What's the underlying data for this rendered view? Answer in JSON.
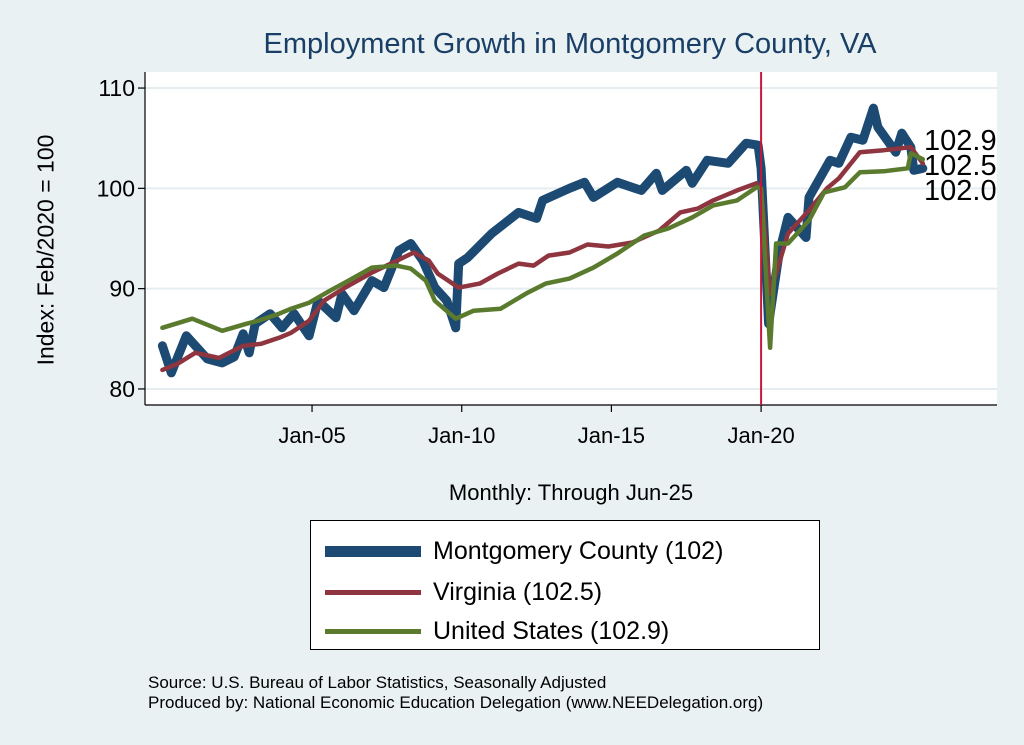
{
  "chart_data": {
    "type": "line",
    "title": "Employment Growth in Montgomery  County, VA",
    "xlabel": "Monthly: Through Jun-25",
    "ylabel": "Index: Feb/2020 = 100",
    "xlim": [
      1999.42,
      2027.88
    ],
    "ylim": [
      78.4,
      111.6
    ],
    "grid": true,
    "x_ticks": [
      {
        "value": 2005,
        "label": "Jan-05"
      },
      {
        "value": 2010,
        "label": "Jan-10"
      },
      {
        "value": 2015,
        "label": "Jan-15"
      },
      {
        "value": 2020,
        "label": "Jan-20"
      }
    ],
    "y_ticks": [
      {
        "value": 80,
        "label": "80"
      },
      {
        "value": 90,
        "label": "90"
      },
      {
        "value": 100,
        "label": "100"
      },
      {
        "value": 110,
        "label": "110"
      }
    ],
    "reference_line": {
      "x": 2020.0,
      "color": "#c8163a"
    },
    "legend_placement": "bottom",
    "end_labels": [
      "102.9",
      "102.5",
      "102.0"
    ],
    "series": [
      {
        "name": "Montgomery  County (102)",
        "color": "#1c4a72",
        "x": [
          2000.0,
          2000.3,
          2000.8,
          2001.5,
          2002.0,
          2002.4,
          2002.7,
          2002.9,
          2003.1,
          2003.6,
          2004.0,
          2004.4,
          2004.9,
          2005.2,
          2005.8,
          2006.0,
          2006.4,
          2007.0,
          2007.4,
          2007.9,
          2008.3,
          2008.7,
          2009.1,
          2009.5,
          2009.8,
          2009.9,
          2010.2,
          2011.0,
          2011.9,
          2012.5,
          2012.7,
          2013.6,
          2014.1,
          2014.4,
          2015.2,
          2016.0,
          2016.5,
          2016.7,
          2017.5,
          2017.7,
          2018.2,
          2018.9,
          2019.5,
          2019.9,
          2020.0,
          2020.25,
          2020.6,
          2020.9,
          2021.5,
          2021.6,
          2022.3,
          2022.6,
          2023.0,
          2023.4,
          2023.75,
          2023.9,
          2024.5,
          2024.7,
          2025.0,
          2025.1,
          2025.4
        ],
        "values": [
          84.3,
          81.6,
          85.3,
          83.0,
          82.6,
          83.2,
          85.5,
          83.6,
          86.5,
          87.5,
          86.1,
          87.5,
          85.3,
          88.8,
          87.1,
          89.5,
          87.8,
          90.8,
          90.1,
          93.8,
          94.5,
          92.8,
          90.1,
          88.8,
          86.1,
          92.5,
          93.1,
          95.5,
          97.6,
          97.0,
          98.8,
          100.0,
          100.6,
          99.1,
          100.6,
          99.8,
          101.5,
          99.8,
          101.8,
          100.5,
          102.8,
          102.5,
          104.5,
          104.3,
          102.0,
          86.5,
          93.5,
          97.1,
          95.1,
          99.1,
          102.8,
          102.5,
          105.1,
          104.8,
          108.0,
          106.1,
          103.6,
          105.5,
          104.1,
          101.8,
          102.0
        ]
      },
      {
        "name": "Virginia (102.5)",
        "color": "#8f3540",
        "x": [
          2000.0,
          2000.5,
          2001.1,
          2001.9,
          2002.7,
          2003.3,
          2003.9,
          2004.3,
          2004.9,
          2005.4,
          2006.1,
          2007.0,
          2007.7,
          2008.4,
          2008.9,
          2009.2,
          2009.9,
          2010.6,
          2011.2,
          2011.9,
          2012.4,
          2012.9,
          2013.6,
          2014.2,
          2014.9,
          2015.7,
          2016.6,
          2017.3,
          2017.9,
          2018.4,
          2019.2,
          2019.85,
          2020.0,
          2020.3,
          2020.9,
          2021.6,
          2022.2,
          2022.6,
          2023.3,
          2024.1,
          2025.0,
          2025.4
        ],
        "values": [
          81.9,
          82.5,
          83.6,
          83.1,
          84.3,
          84.5,
          85.1,
          85.6,
          86.8,
          88.8,
          90.1,
          91.6,
          92.6,
          93.6,
          92.8,
          91.5,
          90.1,
          90.5,
          91.5,
          92.5,
          92.3,
          93.3,
          93.6,
          94.4,
          94.2,
          94.6,
          95.8,
          97.6,
          98.0,
          98.8,
          99.8,
          100.5,
          100.0,
          89.5,
          95.5,
          97.8,
          100.0,
          101.0,
          103.6,
          103.8,
          104.1,
          102.5
        ]
      },
      {
        "name": "United States (102.9)",
        "color": "#5a7a2e",
        "x": [
          2000.0,
          2001.0,
          2002.0,
          2002.8,
          2003.2,
          2003.9,
          2004.3,
          2004.9,
          2005.6,
          2006.1,
          2007.0,
          2007.8,
          2008.3,
          2008.8,
          2009.1,
          2009.8,
          2010.4,
          2011.3,
          2012.2,
          2012.8,
          2013.6,
          2014.4,
          2015.2,
          2016.1,
          2016.9,
          2017.7,
          2018.4,
          2019.2,
          2019.85,
          2020.0,
          2020.3,
          2020.5,
          2020.9,
          2021.6,
          2022.1,
          2022.8,
          2023.3,
          2024.1,
          2024.9,
          2025.0,
          2025.4
        ],
        "values": [
          86.1,
          87.0,
          85.8,
          86.5,
          86.8,
          87.5,
          88.0,
          88.6,
          89.8,
          90.6,
          92.1,
          92.3,
          92.0,
          90.8,
          88.8,
          87.0,
          87.8,
          88.0,
          89.6,
          90.5,
          91.0,
          92.1,
          93.5,
          95.3,
          96.0,
          97.1,
          98.3,
          98.8,
          100.1,
          100.0,
          84.1,
          94.5,
          94.5,
          96.8,
          99.6,
          100.1,
          101.6,
          101.7,
          102.0,
          103.5,
          102.9
        ]
      }
    ]
  },
  "source_lines": [
    "Source: U.S. Bureau of Labor Statistics, Seasonally Adjusted",
    "Produced by: National Economic Education Delegation (www.NEEDelegation.org)"
  ]
}
